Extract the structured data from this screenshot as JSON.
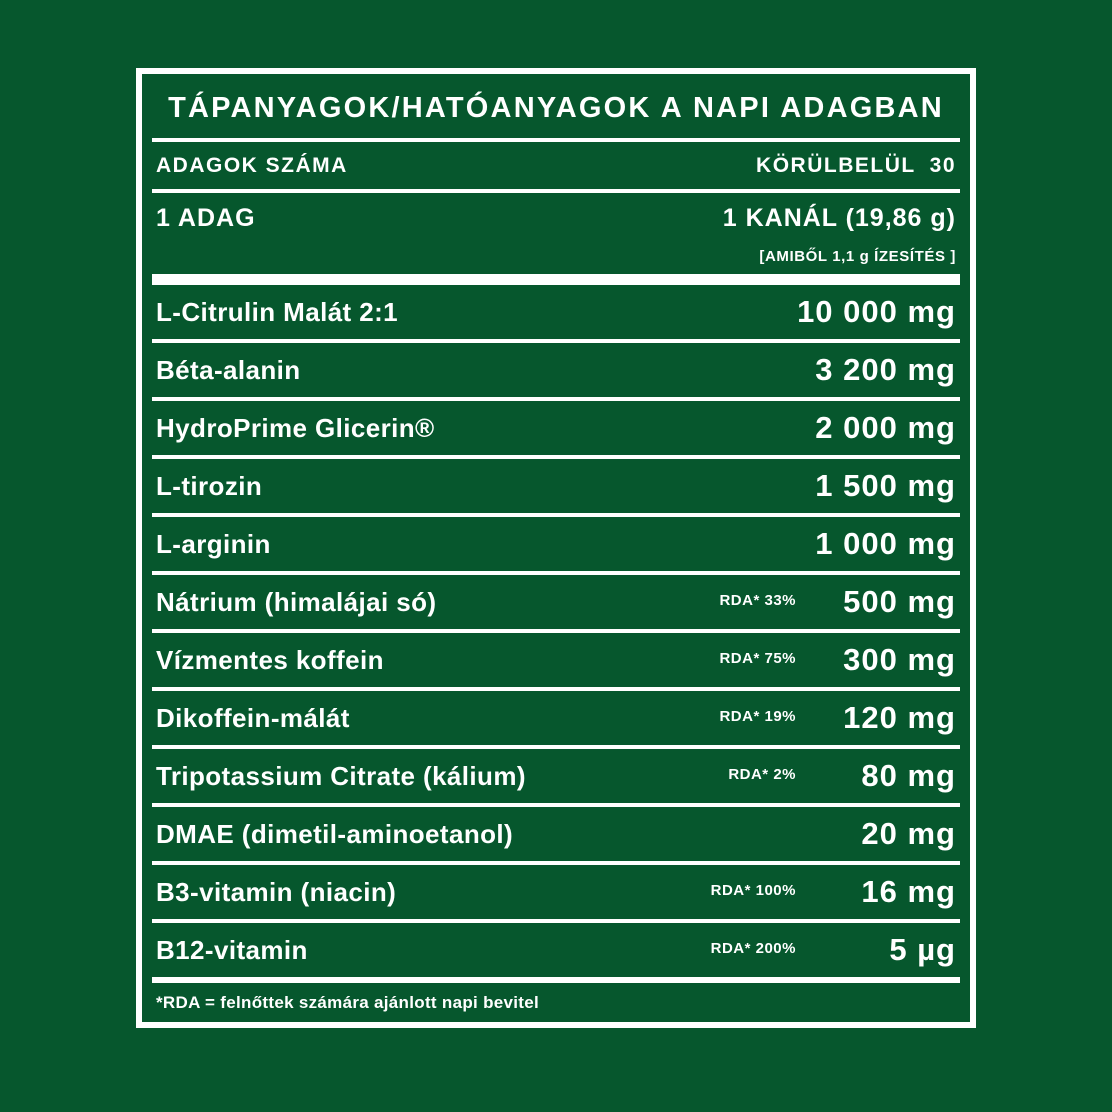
{
  "colors": {
    "background": "#06572D",
    "foreground": "#FFFFFF"
  },
  "panel": {
    "title": "TÁPANYAGOK/HATÓANYAGOK A NAPI ADAGBAN",
    "servings": {
      "label": "ADAGOK SZÁMA",
      "value": "KÖRÜLBELÜL 30"
    },
    "serving_size": {
      "label": "1 ADAG",
      "value": "1 KANÁL (19,86 g)",
      "note": "[AMIBŐL 1,1 g ÍZESÍTÉS ]"
    },
    "rows": [
      {
        "label": "L-Citrulin Malát 2:1",
        "rda": "",
        "value": "10 000 mg"
      },
      {
        "label": "Béta-alanin",
        "rda": "",
        "value": "3 200 mg"
      },
      {
        "label": "HydroPrime Glicerin®",
        "rda": "",
        "value": "2 000 mg"
      },
      {
        "label": "L-tirozin",
        "rda": "",
        "value": "1 500 mg"
      },
      {
        "label": "L-arginin",
        "rda": "",
        "value": "1 000 mg"
      },
      {
        "label": "Nátrium (himalájai só)",
        "rda": "RDA* 33%",
        "value": "500 mg"
      },
      {
        "label": "Vízmentes koffein",
        "rda": "RDA* 75%",
        "value": "300 mg"
      },
      {
        "label": "Dikoffein-málát",
        "rda": "RDA* 19%",
        "value": "120 mg"
      },
      {
        "label": "Tripotassium Citrate (kálium)",
        "rda": "RDA* 2%",
        "value": "80 mg"
      },
      {
        "label": "DMAE (dimetil-aminoetanol)",
        "rda": "",
        "value": "20 mg"
      },
      {
        "label": "B3-vitamin (niacin)",
        "rda": "RDA* 100%",
        "value": "16 mg"
      },
      {
        "label": "B12-vitamin",
        "rda": "RDA* 200%",
        "value": "5 µg"
      }
    ],
    "footnote": "*RDA = felnőttek számára ajánlott napi bevitel"
  }
}
